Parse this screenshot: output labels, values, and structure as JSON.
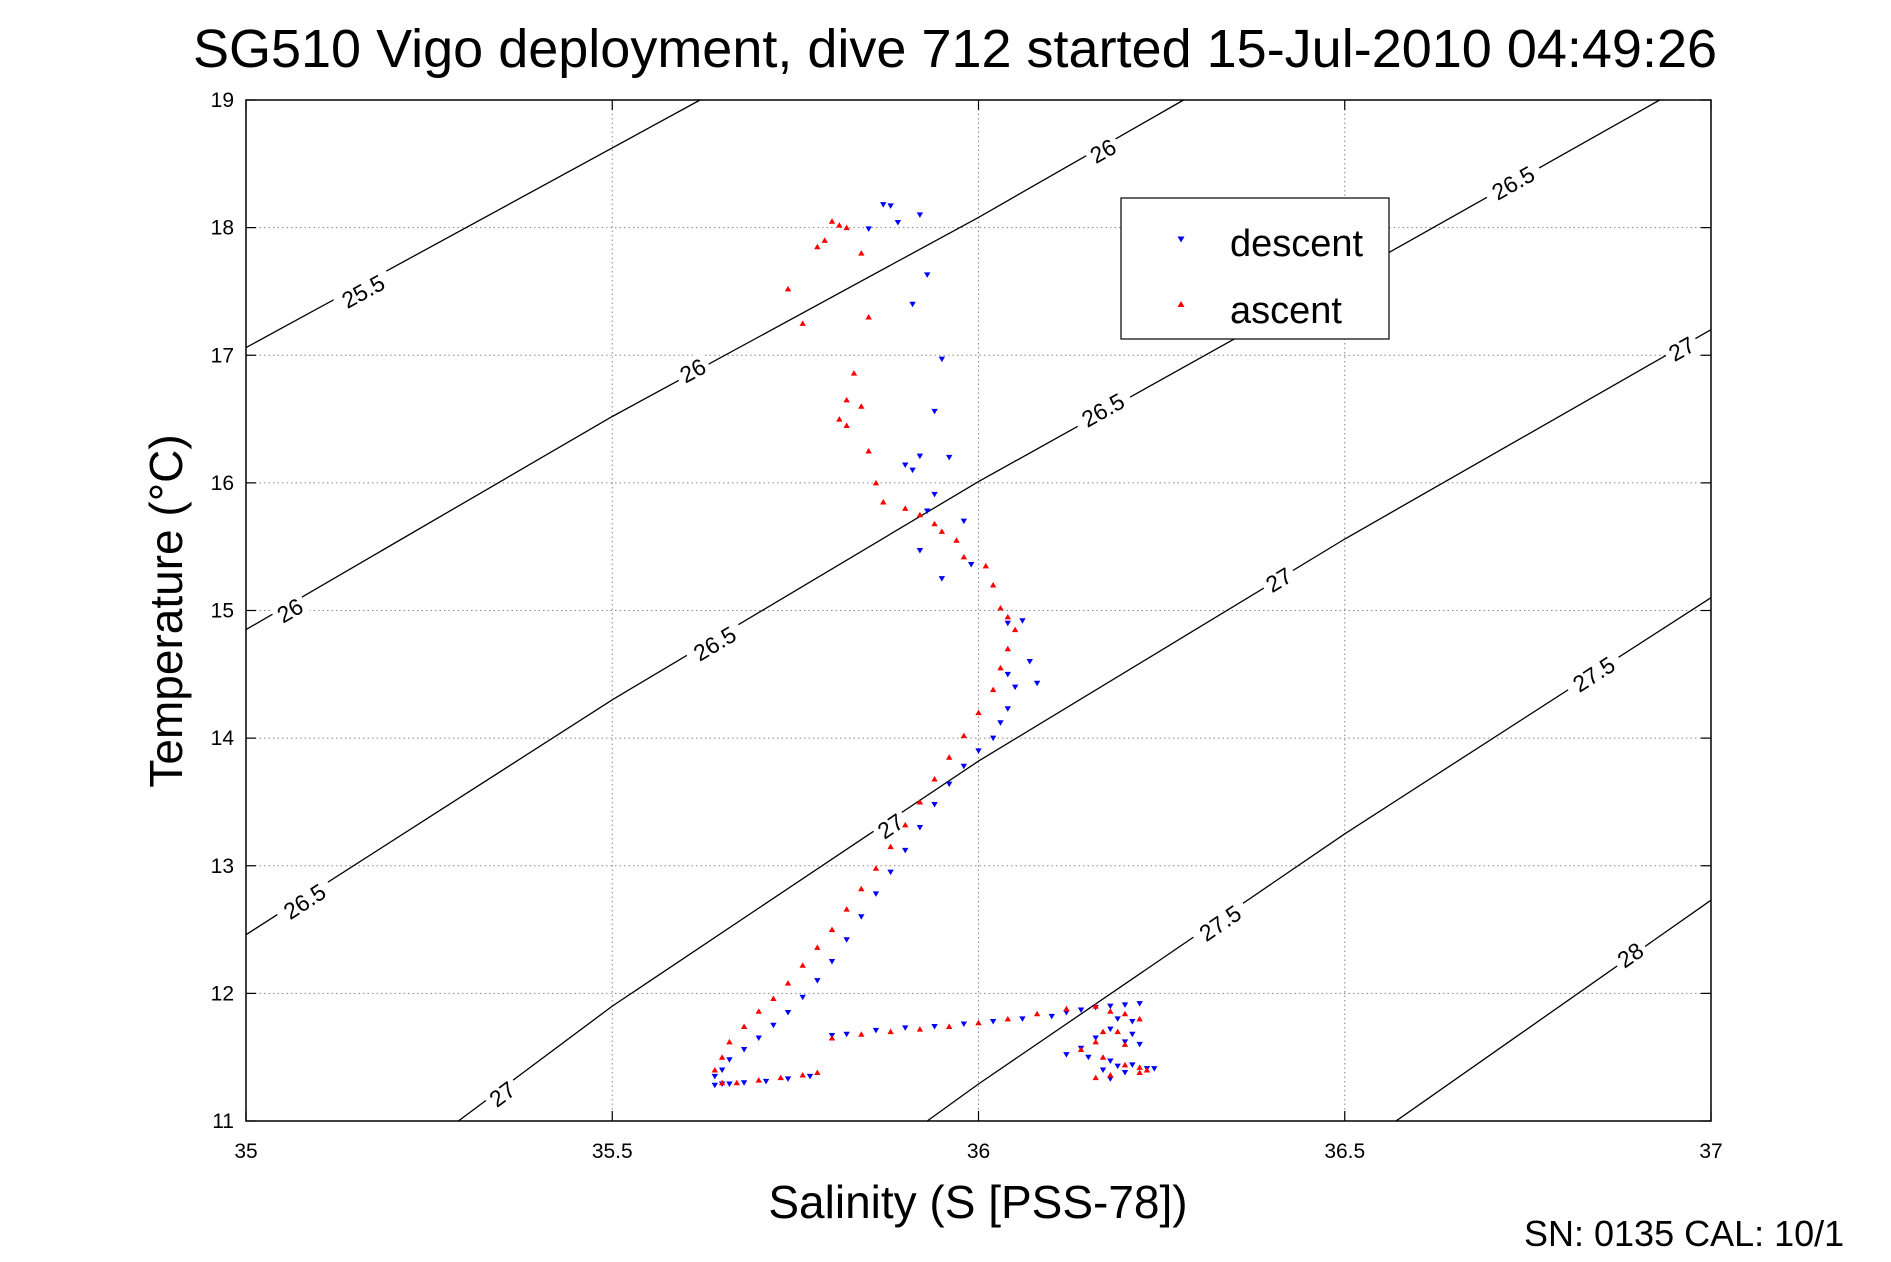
{
  "chart_data": {
    "type": "scatter",
    "title": "SG510 Vigo deployment, dive 712 started 15-Jul-2010 04:49:26",
    "xlabel": "Salinity (S [PSS-78])",
    "ylabel": "Temperature (°C)",
    "xlim": [
      35,
      37
    ],
    "ylim": [
      11,
      19
    ],
    "x_ticks": [
      35,
      35.5,
      36,
      36.5,
      37
    ],
    "x_tick_labels": [
      "35",
      "35.5",
      "36",
      "36.5",
      "37"
    ],
    "y_ticks": [
      11,
      12,
      13,
      14,
      15,
      16,
      17,
      18,
      19
    ],
    "y_tick_labels": [
      "11",
      "12",
      "13",
      "14",
      "15",
      "16",
      "17",
      "18",
      "19"
    ],
    "grid": true,
    "legend_position": "top-right",
    "footer": "SN: 0135  CAL: 10/1",
    "density_contours": [
      {
        "label": "25.5",
        "x": [
          35.0,
          35.62
        ],
        "y": [
          17.06,
          19.0
        ],
        "label_at": [
          35.16,
          17.5
        ]
      },
      {
        "label": "26",
        "x": [
          35.0,
          35.5,
          36.0,
          36.28
        ],
        "y": [
          14.85,
          16.52,
          18.08,
          19.0
        ],
        "label_at": [
          35.06,
          15.0
        ]
      },
      {
        "label": "26",
        "x": [
          35.0,
          35.5,
          36.0,
          36.28
        ],
        "y": [
          14.85,
          16.52,
          18.08,
          19.0
        ],
        "label_at": [
          35.61,
          16.88
        ]
      },
      {
        "label": "26",
        "x": [
          35.0,
          35.5,
          36.0,
          36.28
        ],
        "y": [
          14.85,
          16.52,
          18.08,
          19.0
        ],
        "label_at": [
          36.17,
          18.6
        ]
      },
      {
        "label": "26.5",
        "x": [
          35.0,
          35.5,
          36.0,
          36.5,
          36.93
        ],
        "y": [
          12.46,
          14.3,
          16.01,
          17.61,
          19.0
        ],
        "label_at": [
          35.08,
          12.72
        ]
      },
      {
        "label": "26.5",
        "x": [
          35.0,
          35.5,
          36.0,
          36.5,
          36.93
        ],
        "y": [
          12.46,
          14.3,
          16.01,
          17.61,
          19.0
        ],
        "label_at": [
          35.64,
          14.74
        ]
      },
      {
        "label": "26.5",
        "x": [
          35.0,
          35.5,
          36.0,
          36.5,
          36.93
        ],
        "y": [
          12.46,
          14.3,
          16.01,
          17.61,
          19.0
        ],
        "label_at": [
          36.17,
          16.57
        ]
      },
      {
        "label": "26.5",
        "x": [
          35.0,
          35.5,
          36.0,
          36.5,
          36.93
        ],
        "y": [
          12.46,
          14.3,
          16.01,
          17.61,
          19.0
        ],
        "label_at": [
          36.73,
          18.35
        ]
      },
      {
        "label": "27",
        "x": [
          35.29,
          35.5,
          36.0,
          36.5,
          37.0
        ],
        "y": [
          11.0,
          11.9,
          13.82,
          15.56,
          17.2
        ],
        "label_at": [
          35.35,
          11.21
        ]
      },
      {
        "label": "27",
        "x": [
          35.29,
          35.5,
          36.0,
          36.5,
          37.0
        ],
        "y": [
          11.0,
          11.9,
          13.82,
          15.56,
          17.2
        ],
        "label_at": [
          35.88,
          13.31
        ]
      },
      {
        "label": "27",
        "x": [
          35.29,
          35.5,
          36.0,
          36.5,
          37.0
        ],
        "y": [
          11.0,
          11.9,
          13.82,
          15.56,
          17.2
        ],
        "label_at": [
          36.41,
          15.24
        ]
      },
      {
        "label": "27",
        "x": [
          35.29,
          35.5,
          36.0,
          36.5,
          37.0
        ],
        "y": [
          11.0,
          11.9,
          13.82,
          15.56,
          17.2
        ],
        "label_at": [
          36.96,
          17.05
        ]
      },
      {
        "label": "27.5",
        "x": [
          35.93,
          36.0,
          36.5,
          37.0
        ],
        "y": [
          11.0,
          11.29,
          13.25,
          15.1
        ],
        "label_at": [
          36.33,
          12.55
        ]
      },
      {
        "label": "27.5",
        "x": [
          35.93,
          36.0,
          36.5,
          37.0
        ],
        "y": [
          11.0,
          11.29,
          13.25,
          15.1
        ],
        "label_at": [
          36.84,
          14.5
        ]
      },
      {
        "label": "28",
        "x": [
          36.57,
          37.0
        ],
        "y": [
          11.0,
          12.73
        ],
        "label_at": [
          36.89,
          12.3
        ]
      }
    ],
    "series": [
      {
        "name": "descent",
        "color": "#0000ff",
        "marker": "triangle-down",
        "x": [
          35.87,
          35.88,
          35.85,
          35.89,
          35.92,
          35.91,
          35.93,
          35.95,
          35.94,
          35.96,
          35.91,
          35.9,
          35.92,
          35.94,
          35.93,
          35.98,
          35.92,
          35.95,
          35.99,
          36.04,
          36.06,
          36.07,
          36.08,
          36.04,
          36.05,
          36.04,
          36.03,
          36.02,
          36.0,
          35.98,
          35.96,
          35.94,
          35.92,
          35.9,
          35.88,
          35.86,
          35.84,
          35.82,
          35.8,
          35.78,
          35.76,
          35.74,
          35.72,
          35.7,
          35.68,
          35.66,
          35.65,
          35.64,
          35.64,
          35.65,
          35.66,
          35.68,
          35.71,
          35.74,
          35.77,
          35.8,
          35.82,
          35.86,
          35.9,
          35.94,
          35.98,
          36.02,
          36.06,
          36.1,
          36.12,
          36.14,
          36.16,
          36.18,
          36.2,
          36.22,
          36.21,
          36.18,
          36.16,
          36.14,
          36.12,
          36.15,
          36.18,
          36.2,
          36.22,
          36.19,
          36.17,
          36.2,
          36.23,
          36.21,
          36.18,
          36.24,
          36.21,
          36.19
        ],
        "y": [
          18.18,
          18.17,
          17.99,
          18.04,
          18.1,
          17.4,
          17.63,
          16.97,
          16.56,
          16.2,
          16.1,
          16.14,
          16.21,
          15.91,
          15.78,
          15.7,
          15.47,
          15.25,
          15.36,
          14.9,
          14.92,
          14.6,
          14.43,
          14.5,
          14.4,
          14.23,
          14.12,
          14.0,
          13.9,
          13.78,
          13.64,
          13.48,
          13.3,
          13.12,
          12.95,
          12.78,
          12.6,
          12.42,
          12.25,
          12.1,
          11.97,
          11.85,
          11.75,
          11.65,
          11.56,
          11.48,
          11.4,
          11.35,
          11.28,
          11.29,
          11.29,
          11.3,
          11.31,
          11.33,
          11.35,
          11.67,
          11.68,
          11.71,
          11.73,
          11.74,
          11.76,
          11.78,
          11.8,
          11.82,
          11.85,
          11.87,
          11.89,
          11.9,
          11.91,
          11.92,
          11.78,
          11.72,
          11.65,
          11.57,
          11.52,
          11.5,
          11.47,
          11.62,
          11.6,
          11.43,
          11.4,
          11.38,
          11.41,
          11.44,
          11.33,
          11.41,
          11.68,
          11.8
        ]
      },
      {
        "name": "ascent",
        "color": "#ff0000",
        "marker": "triangle-up",
        "x": [
          35.8,
          35.82,
          35.78,
          35.81,
          35.79,
          35.84,
          35.74,
          35.85,
          35.76,
          35.83,
          35.82,
          35.81,
          35.84,
          35.82,
          35.85,
          35.86,
          35.87,
          35.9,
          35.92,
          35.94,
          35.95,
          35.97,
          35.98,
          36.01,
          36.02,
          36.03,
          36.04,
          36.05,
          36.04,
          36.03,
          36.02,
          36.0,
          35.98,
          35.96,
          35.94,
          35.92,
          35.9,
          35.88,
          35.86,
          35.84,
          35.82,
          35.8,
          35.78,
          35.76,
          35.74,
          35.72,
          35.7,
          35.68,
          35.66,
          35.65,
          35.64,
          35.65,
          35.67,
          35.7,
          35.73,
          35.76,
          35.78,
          35.8,
          35.84,
          35.88,
          35.92,
          35.96,
          36.0,
          36.04,
          36.08,
          36.12,
          36.16,
          36.18,
          36.2,
          36.22,
          36.19,
          36.16,
          36.14,
          36.17,
          36.2,
          36.22,
          36.18,
          36.16,
          36.22,
          36.23,
          36.2,
          36.17
        ],
        "y": [
          18.05,
          18.0,
          17.85,
          18.02,
          17.9,
          17.8,
          17.52,
          17.3,
          17.25,
          16.86,
          16.65,
          16.5,
          16.6,
          16.45,
          16.25,
          16.0,
          15.85,
          15.8,
          15.75,
          15.68,
          15.62,
          15.55,
          15.42,
          15.35,
          15.2,
          15.02,
          14.95,
          14.85,
          14.7,
          14.55,
          14.38,
          14.2,
          14.02,
          13.85,
          13.68,
          13.5,
          13.32,
          13.15,
          12.98,
          12.82,
          12.66,
          12.5,
          12.36,
          12.22,
          12.08,
          11.96,
          11.86,
          11.74,
          11.62,
          11.5,
          11.4,
          11.3,
          11.3,
          11.32,
          11.34,
          11.36,
          11.38,
          11.65,
          11.68,
          11.7,
          11.72,
          11.74,
          11.77,
          11.8,
          11.84,
          11.88,
          11.9,
          11.86,
          11.84,
          11.8,
          11.7,
          11.62,
          11.56,
          11.5,
          11.44,
          11.38,
          11.36,
          11.34,
          11.42,
          11.4,
          11.6,
          11.7
        ]
      }
    ]
  }
}
